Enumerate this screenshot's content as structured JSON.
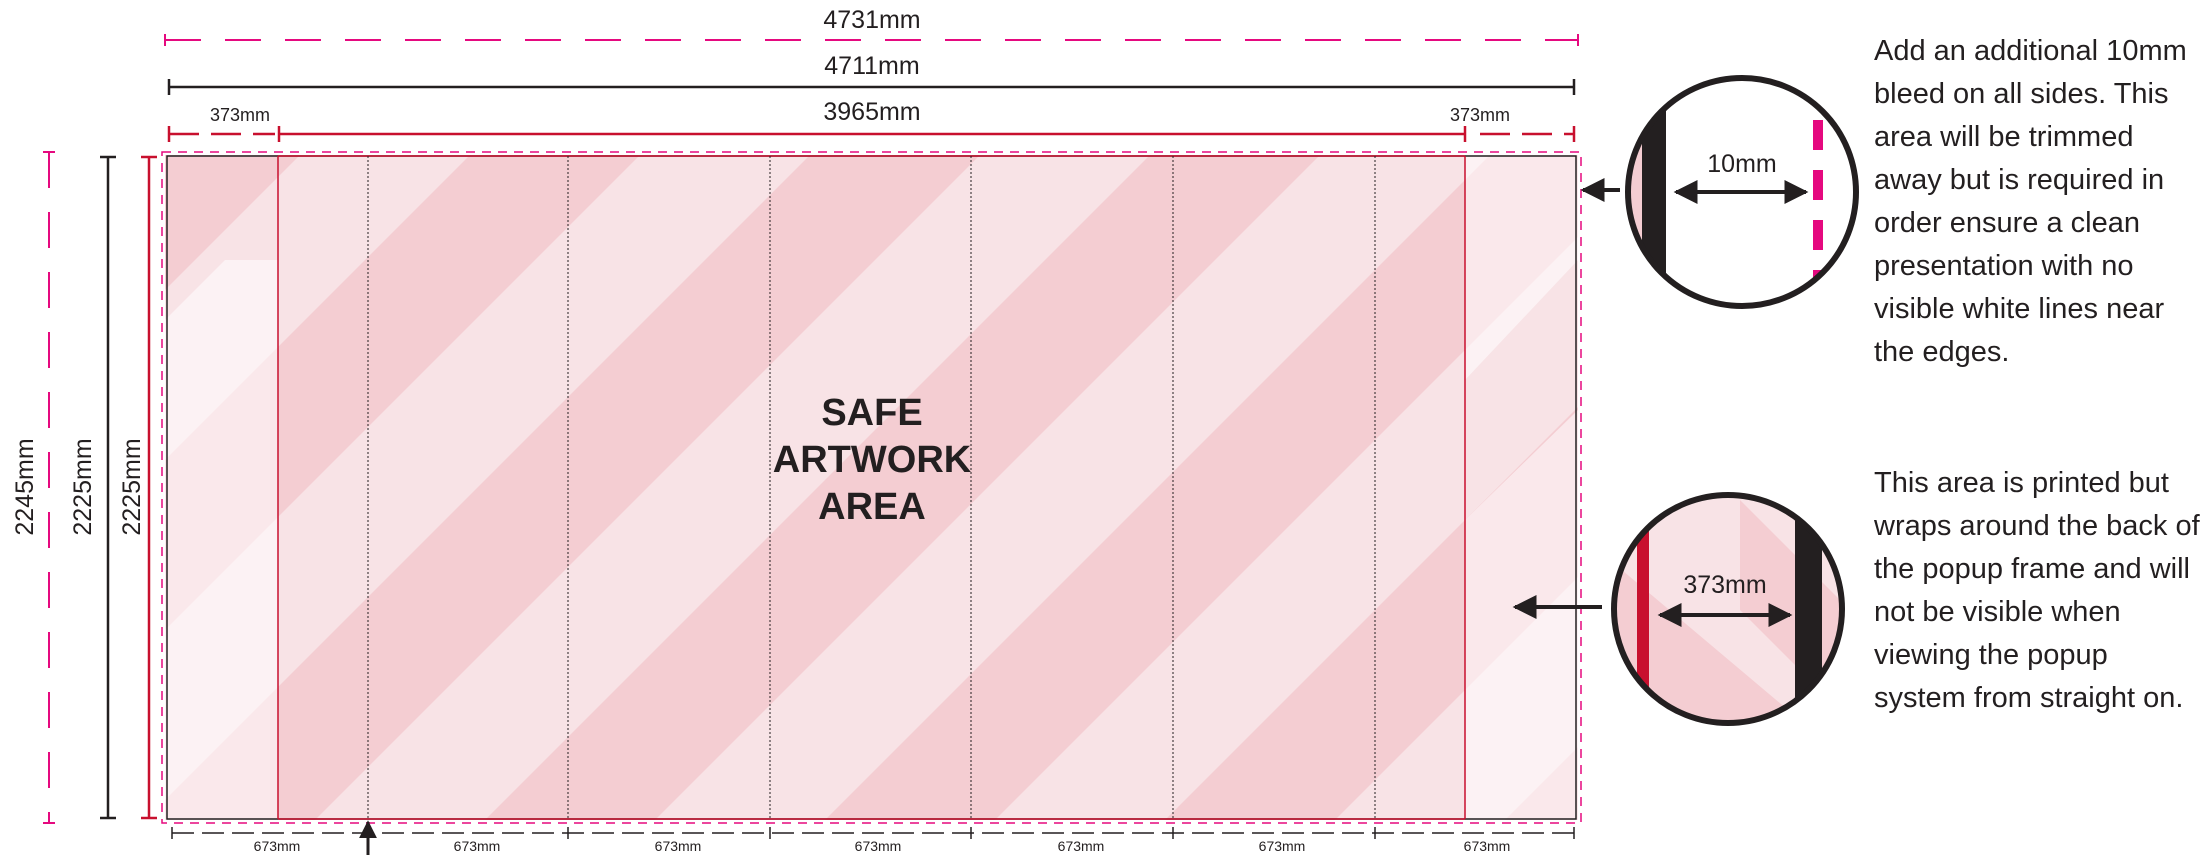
{
  "dimensions": {
    "total_bleed_width": "4731mm",
    "total_width": "4711mm",
    "wrap_left": "373mm",
    "visible_width": "3965mm",
    "wrap_right": "373mm",
    "bleed_height": "2245mm",
    "total_height": "2225mm",
    "safe_height": "2225mm",
    "panel_widths": [
      "673mm",
      "673mm",
      "673mm",
      "673mm",
      "673mm",
      "673mm",
      "673mm"
    ]
  },
  "safe_area": {
    "lines": [
      "SAFE",
      "ARTWORK",
      "AREA"
    ]
  },
  "callouts": {
    "bleed": {
      "label": "10mm",
      "text": "Add an additional 10mm bleed on all sides. This area will be trimmed away but is required in order ensure a clean presentation with no visible white lines near the edges."
    },
    "wrap": {
      "label": "373mm",
      "text": "This area is printed but wraps around the back of the popup frame and will not be visible when viewing the popup system from straight on."
    }
  },
  "colors": {
    "bleed_magenta": "#e5097f",
    "safe_red": "#c8102e",
    "ink": "#231f20",
    "fill_light": "#f8e3e6",
    "fill_dark": "#f4cdd2"
  }
}
